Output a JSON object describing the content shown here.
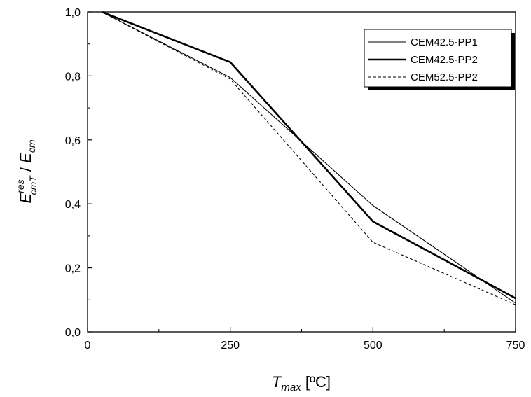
{
  "chart_data": {
    "type": "line",
    "xlabel": {
      "main": "T",
      "sub": "max",
      "unit": " [ºC]"
    },
    "ylabel": {
      "main": "E",
      "sup": "res",
      "sub": "cmT",
      "sep": " / ",
      "main2": "E",
      "sub2": "cm"
    },
    "xlim": [
      0,
      750
    ],
    "ylim": [
      0,
      1.0
    ],
    "x_ticks": [
      {
        "value": 0,
        "label": "0"
      },
      {
        "value": 250,
        "label": "250"
      },
      {
        "value": 500,
        "label": "500"
      },
      {
        "value": 750,
        "label": "750"
      }
    ],
    "y_ticks": [
      {
        "value": 0.0,
        "label": "0,0"
      },
      {
        "value": 0.2,
        "label": "0,2"
      },
      {
        "value": 0.4,
        "label": "0,4"
      },
      {
        "value": 0.6,
        "label": "0,6"
      },
      {
        "value": 0.8,
        "label": "0,8"
      },
      {
        "value": 1.0,
        "label": "1,0"
      }
    ],
    "grid": false,
    "legend_position": "top-right",
    "series": [
      {
        "name": "CEM42.5-PP1",
        "style": "thin-solid",
        "color": "#000000",
        "x": [
          25,
          250,
          500,
          750
        ],
        "y": [
          1.0,
          0.795,
          0.395,
          0.09
        ]
      },
      {
        "name": "CEM42.5-PP2",
        "style": "thick-solid",
        "color": "#000000",
        "x": [
          25,
          250,
          500,
          750
        ],
        "y": [
          1.0,
          0.843,
          0.345,
          0.105
        ]
      },
      {
        "name": "CEM52.5-PP2",
        "style": "dashed",
        "color": "#000000",
        "x": [
          25,
          250,
          500,
          750
        ],
        "y": [
          1.0,
          0.79,
          0.28,
          0.085
        ]
      }
    ]
  }
}
